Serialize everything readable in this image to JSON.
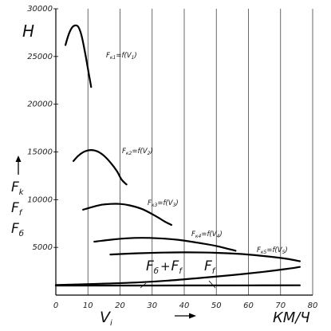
{
  "chart_data": {
    "type": "line",
    "xlim": [
      0,
      80
    ],
    "ylim": [
      0,
      30000
    ],
    "x_ticks": [
      0,
      10,
      20,
      30,
      40,
      50,
      60,
      70,
      80
    ],
    "y_ticks": [
      5000,
      10000,
      15000,
      20000,
      25000,
      30000
    ],
    "grid": {
      "vertical": true,
      "horizontal": false
    },
    "ylabel": "H",
    "xlabel": "V",
    "xlabel_subscript": "i",
    "x_unit": "КМ/Ч",
    "left_stack": [
      {
        "main": "F",
        "sub": "k"
      },
      {
        "main": "F",
        "sub": "f"
      },
      {
        "main": "F",
        "sub": "б"
      }
    ],
    "bottom_label": {
      "a": "F",
      "a_sub": "б",
      "plus": "+",
      "b": "F",
      "b_sub": "f"
    },
    "ff_label": {
      "main": "F",
      "sub": "f"
    },
    "series": [
      {
        "name": "Fк1=f(V1)",
        "label": "Fк1 =f(V1)",
        "points": [
          [
            3,
            26200
          ],
          [
            4,
            27300
          ],
          [
            5,
            28000
          ],
          [
            6,
            28250
          ],
          [
            7,
            28100
          ],
          [
            8,
            27200
          ],
          [
            9,
            25600
          ],
          [
            10,
            23700
          ],
          [
            11,
            21800
          ]
        ]
      },
      {
        "name": "Fк2=f(V2)",
        "label": "Fк2 =f(V2)",
        "points": [
          [
            5.5,
            14050
          ],
          [
            7,
            14600
          ],
          [
            9,
            15050
          ],
          [
            11,
            15200
          ],
          [
            13,
            15050
          ],
          [
            15,
            14600
          ],
          [
            17,
            13900
          ],
          [
            19,
            13000
          ],
          [
            20.5,
            12100
          ],
          [
            22,
            11600
          ]
        ]
      },
      {
        "name": "Fк3=f(V3)",
        "label": "Fк3 =f(V3)",
        "points": [
          [
            8.5,
            8950
          ],
          [
            11,
            9200
          ],
          [
            14,
            9450
          ],
          [
            17,
            9550
          ],
          [
            20,
            9550
          ],
          [
            23,
            9400
          ],
          [
            27,
            9000
          ],
          [
            31,
            8300
          ],
          [
            34,
            7700
          ],
          [
            36,
            7350
          ]
        ]
      },
      {
        "name": "Fк4=f(V4)",
        "label": "Fк4 =f(V4)",
        "points": [
          [
            12,
            5600
          ],
          [
            17,
            5800
          ],
          [
            22,
            5950
          ],
          [
            27,
            6000
          ],
          [
            32,
            5950
          ],
          [
            38,
            5800
          ],
          [
            44,
            5500
          ],
          [
            50,
            5150
          ],
          [
            56,
            4650
          ]
        ]
      },
      {
        "name": "Fк5=f(V5)",
        "label": "Fк5 =f(V5)",
        "points": [
          [
            17,
            4250
          ],
          [
            25,
            4380
          ],
          [
            33,
            4450
          ],
          [
            41,
            4480
          ],
          [
            50,
            4430
          ],
          [
            58,
            4300
          ],
          [
            66,
            4050
          ],
          [
            72,
            3800
          ],
          [
            76,
            3550
          ]
        ]
      },
      {
        "name": "Fб+Ff",
        "points": [
          [
            0,
            1050
          ],
          [
            15,
            1200
          ],
          [
            25,
            1320
          ],
          [
            35,
            1520
          ],
          [
            45,
            1800
          ],
          [
            55,
            2100
          ],
          [
            65,
            2450
          ],
          [
            72,
            2750
          ],
          [
            76,
            2950
          ]
        ]
      },
      {
        "name": "Ff",
        "points": [
          [
            0,
            1000
          ],
          [
            20,
            1000
          ],
          [
            40,
            1010
          ],
          [
            60,
            1020
          ],
          [
            76,
            1030
          ]
        ]
      }
    ]
  }
}
